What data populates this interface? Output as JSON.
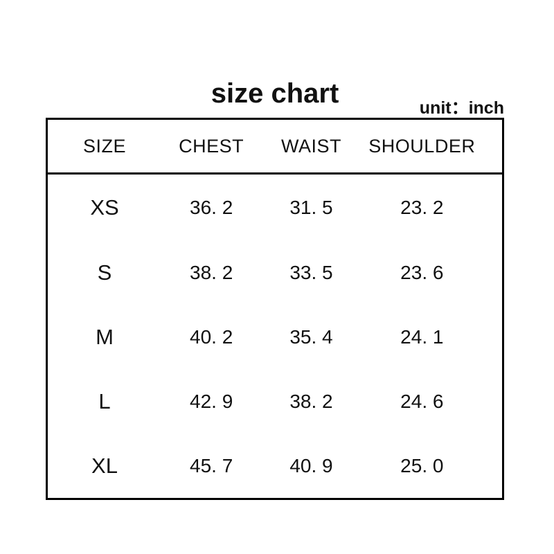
{
  "header": {
    "title": "size chart",
    "unit_label": "unit：inch"
  },
  "chart_data": {
    "type": "table",
    "title": "size chart",
    "unit": "inch",
    "columns": [
      "SIZE",
      "CHEST",
      "WAIST",
      "SHOULDER"
    ],
    "rows": [
      [
        "XS",
        "36. 2",
        "31. 5",
        "23. 2"
      ],
      [
        "S",
        "38. 2",
        "33. 5",
        "23. 6"
      ],
      [
        "M",
        "40. 2",
        "35. 4",
        "24. 1"
      ],
      [
        "L",
        "42. 9",
        "38. 2",
        "24. 6"
      ],
      [
        "XL",
        "45. 7",
        "40. 9",
        "25. 0"
      ]
    ],
    "layout": {
      "border_color": "#000000",
      "text_color": "#111111",
      "background_color": "#ffffff",
      "grid": "outer-box-with-header-divider-only"
    }
  }
}
